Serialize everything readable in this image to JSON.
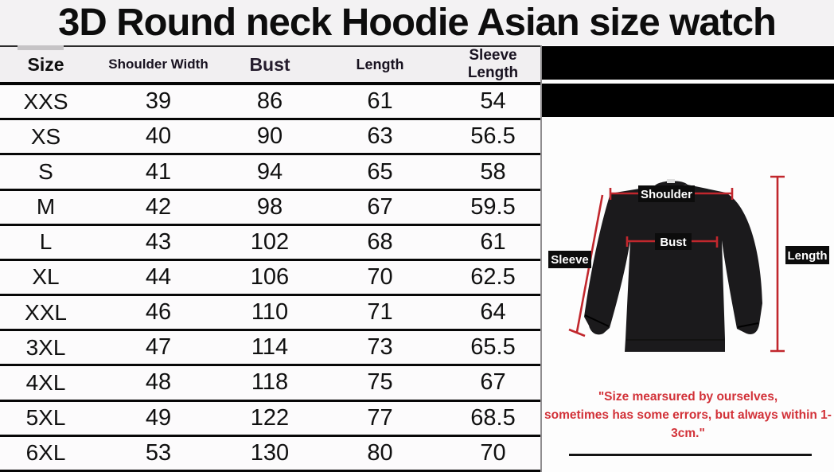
{
  "title": "3D Round neck Hoodie Asian size watch",
  "chart_data": {
    "type": "table",
    "title": "3D Round neck Hoodie Asian size watch",
    "columns": [
      "Size",
      "Shoulder Width",
      "Bust",
      "Length",
      "Sleeve Length"
    ],
    "rows": [
      [
        "XXS",
        "39",
        "86",
        "61",
        "54"
      ],
      [
        "XS",
        "40",
        "90",
        "63",
        "56.5"
      ],
      [
        "S",
        "41",
        "94",
        "65",
        "58"
      ],
      [
        "M",
        "42",
        "98",
        "67",
        "59.5"
      ],
      [
        "L",
        "43",
        "102",
        "68",
        "61"
      ],
      [
        "XL",
        "44",
        "106",
        "70",
        "62.5"
      ],
      [
        "XXL",
        "46",
        "110",
        "71",
        "64"
      ],
      [
        "3XL",
        "47",
        "114",
        "73",
        "65.5"
      ],
      [
        "4XL",
        "48",
        "118",
        "75",
        "67"
      ],
      [
        "5XL",
        "49",
        "122",
        "77",
        "68.5"
      ],
      [
        "6XL",
        "53",
        "130",
        "80",
        "70"
      ]
    ]
  },
  "measurement_panel": {
    "labels": {
      "shoulder": "Shoulder",
      "bust": "Bust",
      "sleeve": "Sleeve",
      "length": "Length"
    },
    "disclaimer_line1": "\"Size mearsured by ourselves,",
    "disclaimer_line2": "sometimes has some errors, but always within 1-3cm.\"",
    "colors": {
      "measure_line_red": "#c1272d",
      "disclaimer_red": "#d23138",
      "label_box_black": "#0c0c0c",
      "label_text_white": "#ffffff"
    }
  }
}
